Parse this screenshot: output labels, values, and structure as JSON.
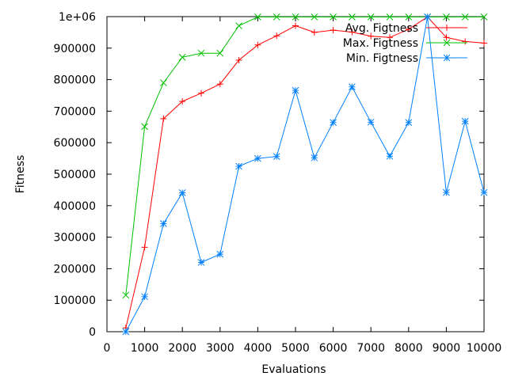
{
  "chart_data": {
    "type": "line",
    "title": "",
    "xlabel": "Evaluations",
    "ylabel": "Fitness",
    "xlim": [
      0,
      10000
    ],
    "ylim": [
      0,
      1000000
    ],
    "xticks": [
      0,
      1000,
      2000,
      3000,
      4000,
      5000,
      6000,
      7000,
      8000,
      9000,
      10000
    ],
    "xtick_labels": [
      "0",
      "1000",
      "2000",
      "3000",
      "4000",
      "5000",
      "6000",
      "7000",
      "8000",
      "9000",
      "10000"
    ],
    "yticks": [
      0,
      100000,
      200000,
      300000,
      400000,
      500000,
      600000,
      700000,
      800000,
      900000,
      1000000
    ],
    "ytick_labels": [
      "0",
      "100000",
      "200000",
      "300000",
      "400000",
      "500000",
      "600000",
      "700000",
      "800000",
      "900000",
      "1e+06"
    ],
    "grid": false,
    "legend_position": "top-right",
    "x": [
      500,
      1000,
      1500,
      2000,
      2500,
      3000,
      3500,
      4000,
      4500,
      5000,
      5500,
      6000,
      6500,
      7000,
      7500,
      8000,
      8500,
      9000,
      9500,
      10000
    ],
    "series": [
      {
        "name": "Avg. Figtness",
        "color": "#ff0000",
        "marker": "plus",
        "values": [
          12000,
          268000,
          676000,
          731000,
          757000,
          786000,
          862000,
          910000,
          939000,
          971000,
          950000,
          957000,
          951000,
          938000,
          934000,
          960000,
          999000,
          934000,
          921000,
          916000
        ]
      },
      {
        "name": "Max. Figtness",
        "color": "#00c000",
        "marker": "cross",
        "values": [
          116000,
          651000,
          790000,
          871000,
          884000,
          884000,
          971000,
          999000,
          999000,
          999000,
          999000,
          999000,
          999000,
          999000,
          999000,
          999000,
          999000,
          999000,
          999000,
          999000
        ]
      },
      {
        "name": "Min. Figtness",
        "color": "#0080ff",
        "marker": "star",
        "values": [
          0,
          111000,
          343000,
          441000,
          220000,
          246000,
          525000,
          550000,
          556000,
          766000,
          552000,
          664000,
          777000,
          665000,
          557000,
          664000,
          999000,
          442000,
          668000,
          442000
        ]
      }
    ]
  }
}
